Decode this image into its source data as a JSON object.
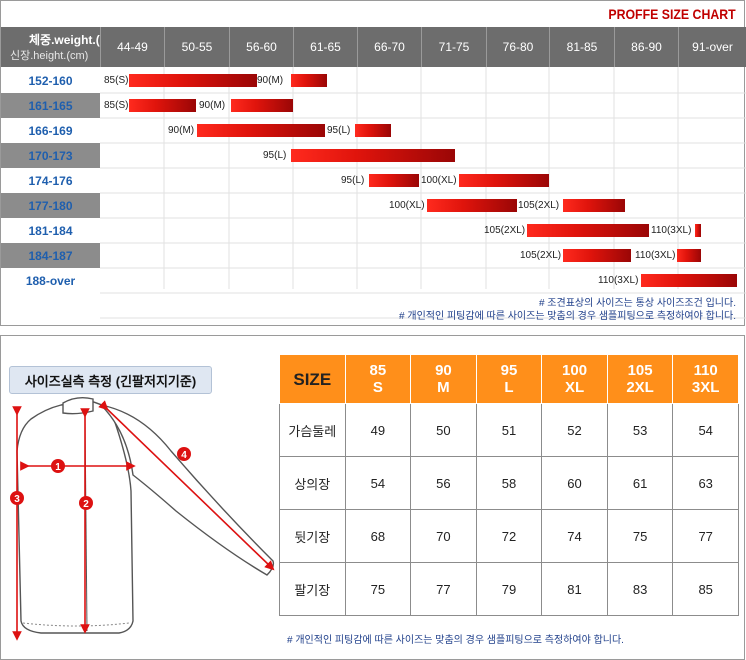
{
  "size_chart": {
    "title": "PROFFE SIZE CHART",
    "header": {
      "weight_label": "체중.weight.(kg)",
      "height_label": "신장.height.(cm)",
      "weights": [
        "44-49",
        "50-55",
        "56-60",
        "61-65",
        "66-70",
        "71-75",
        "76-80",
        "81-85",
        "86-90",
        "91-over"
      ]
    },
    "rows": [
      {
        "height": "152-160",
        "segments": [
          {
            "label": "85(S)"
          },
          {
            "label": "90(M)"
          }
        ]
      },
      {
        "height": "161-165",
        "segments": [
          {
            "label": "85(S)"
          },
          {
            "label": "90(M)"
          }
        ]
      },
      {
        "height": "166-169",
        "segments": [
          {
            "label": "90(M)"
          },
          {
            "label": "95(L)"
          }
        ]
      },
      {
        "height": "170-173",
        "segments": [
          {
            "label": "95(L)"
          }
        ]
      },
      {
        "height": "174-176",
        "segments": [
          {
            "label": "95(L)"
          },
          {
            "label": "100(XL)"
          }
        ]
      },
      {
        "height": "177-180",
        "segments": [
          {
            "label": "100(XL)"
          },
          {
            "label": "105(2XL)"
          }
        ]
      },
      {
        "height": "181-184",
        "segments": [
          {
            "label": "105(2XL)"
          },
          {
            "label": "110(3XL)"
          }
        ]
      },
      {
        "height": "184-187",
        "segments": [
          {
            "label": "105(2XL)"
          },
          {
            "label": "110(3XL)"
          }
        ]
      },
      {
        "height": "188-over",
        "segments": [
          {
            "label": "110(3XL)"
          }
        ]
      }
    ],
    "notes": [
      "# 조견표상의 사이즈는 통상 사이즈조건 입니다.",
      "# 개인적인 피팅감에 따른 사이즈는 맞춤의 경우 샘플피팅으로 측정하여야 합니다."
    ]
  },
  "measurement": {
    "title": "사이즈실측 측정 (긴팔저지기준)",
    "markers": [
      "1",
      "2",
      "3",
      "4"
    ],
    "table": {
      "header_first": "SIZE",
      "sizes": [
        {
          "num": "85",
          "code": "S"
        },
        {
          "num": "90",
          "code": "M"
        },
        {
          "num": "95",
          "code": "L"
        },
        {
          "num": "100",
          "code": "XL"
        },
        {
          "num": "105",
          "code": "2XL"
        },
        {
          "num": "110",
          "code": "3XL"
        }
      ],
      "rows": [
        {
          "label": "가슴둘레",
          "values": [
            "49",
            "50",
            "51",
            "52",
            "53",
            "54"
          ]
        },
        {
          "label": "상의장",
          "values": [
            "54",
            "56",
            "58",
            "60",
            "61",
            "63"
          ]
        },
        {
          "label": "뒷기장",
          "values": [
            "68",
            "70",
            "72",
            "74",
            "75",
            "77"
          ]
        },
        {
          "label": "팔기장",
          "values": [
            "75",
            "77",
            "79",
            "81",
            "83",
            "85"
          ]
        }
      ]
    },
    "note": "# 개인적인 피팅감에 따른 사이즈는 맞춤의 경우 샘플피팅으로 측정하여야 합니다."
  },
  "colors": {
    "header_gray": "#6d6d6d",
    "row_shade": "#8c8c8c",
    "height_text": "#1f5fae",
    "bar_red": "#e0140c",
    "title_red": "#c00000",
    "table_orange": "#ff8f1a",
    "note_blue": "#1f3f8a"
  }
}
